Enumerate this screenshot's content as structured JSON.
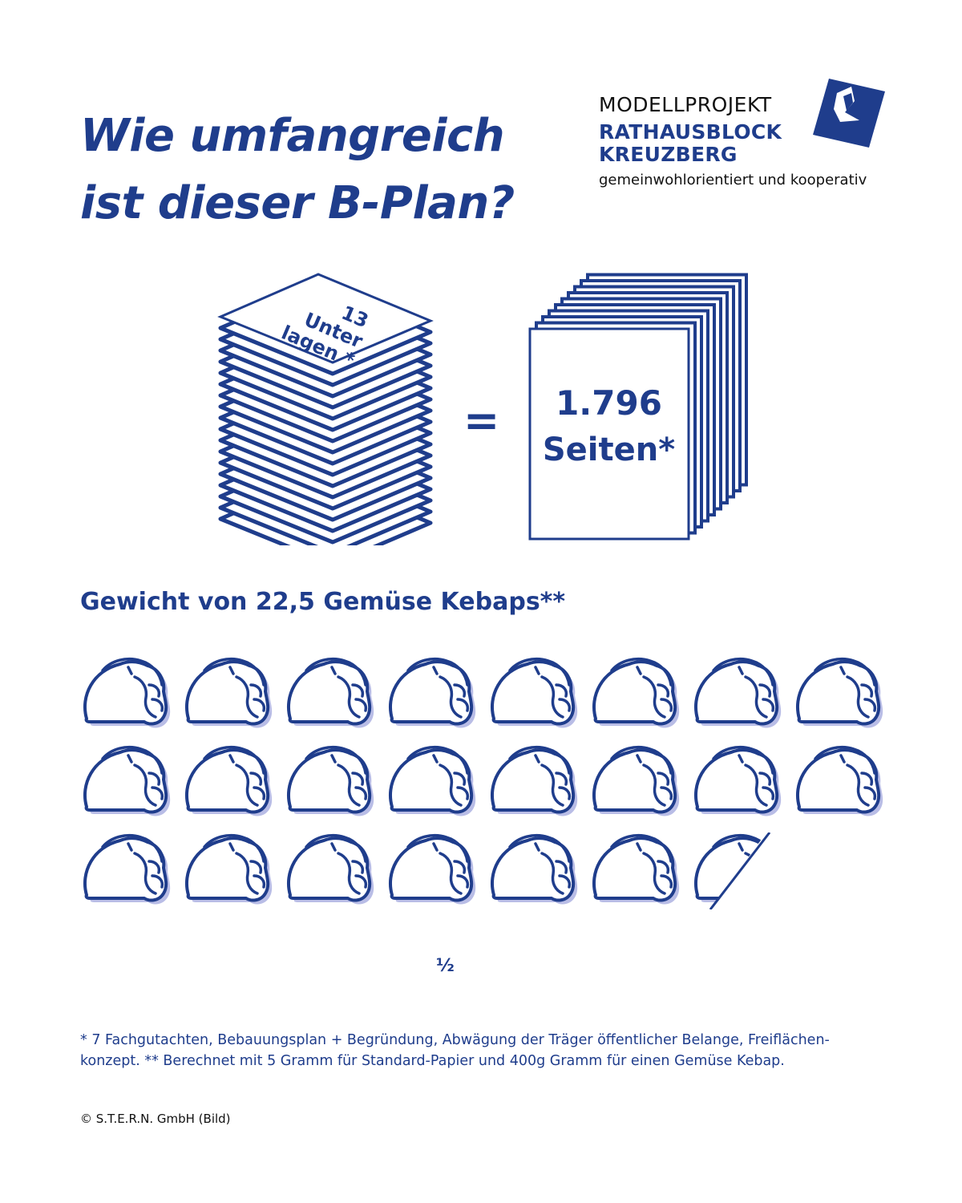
{
  "header": {
    "title_line1": "Wie umfangreich",
    "title_line2": "ist dieser B-Plan?"
  },
  "logo": {
    "line1": "MODELLPROJEKT",
    "line2": "RATHAUSBLOCK",
    "line3": "KREUZBERG",
    "tagline": "gemeinwohlorientiert und kooperativ",
    "icon": "folded-square-logo"
  },
  "comparison": {
    "stack_label_line1": "13",
    "stack_label_line2": "Unter",
    "stack_label_line3": "lagen *",
    "equals": "=",
    "pages_count": "1.796",
    "pages_unit": "Seiten*"
  },
  "weight": {
    "subtitle": "Gewicht von 22,5 Gemüse Kebaps**",
    "kebab_count": 22.5,
    "half_label": "½",
    "icon": "kebab-icon"
  },
  "footnote": {
    "line1": "* 7 Fachgutachten, Bebauungsplan + Begründung, Abwägung der Träger öffentlicher Belange, Freiflächen-",
    "line2": "konzept. ** Berechnet mit 5 Gramm für Standard-Papier und 400g Gramm für einen Gemüse Kebap."
  },
  "credit": "© S.T.E.R.N. GmbH (Bild)",
  "colors": {
    "primary": "#1f3d8c",
    "shadow": "#b9bde6",
    "text_dark": "#111111"
  }
}
